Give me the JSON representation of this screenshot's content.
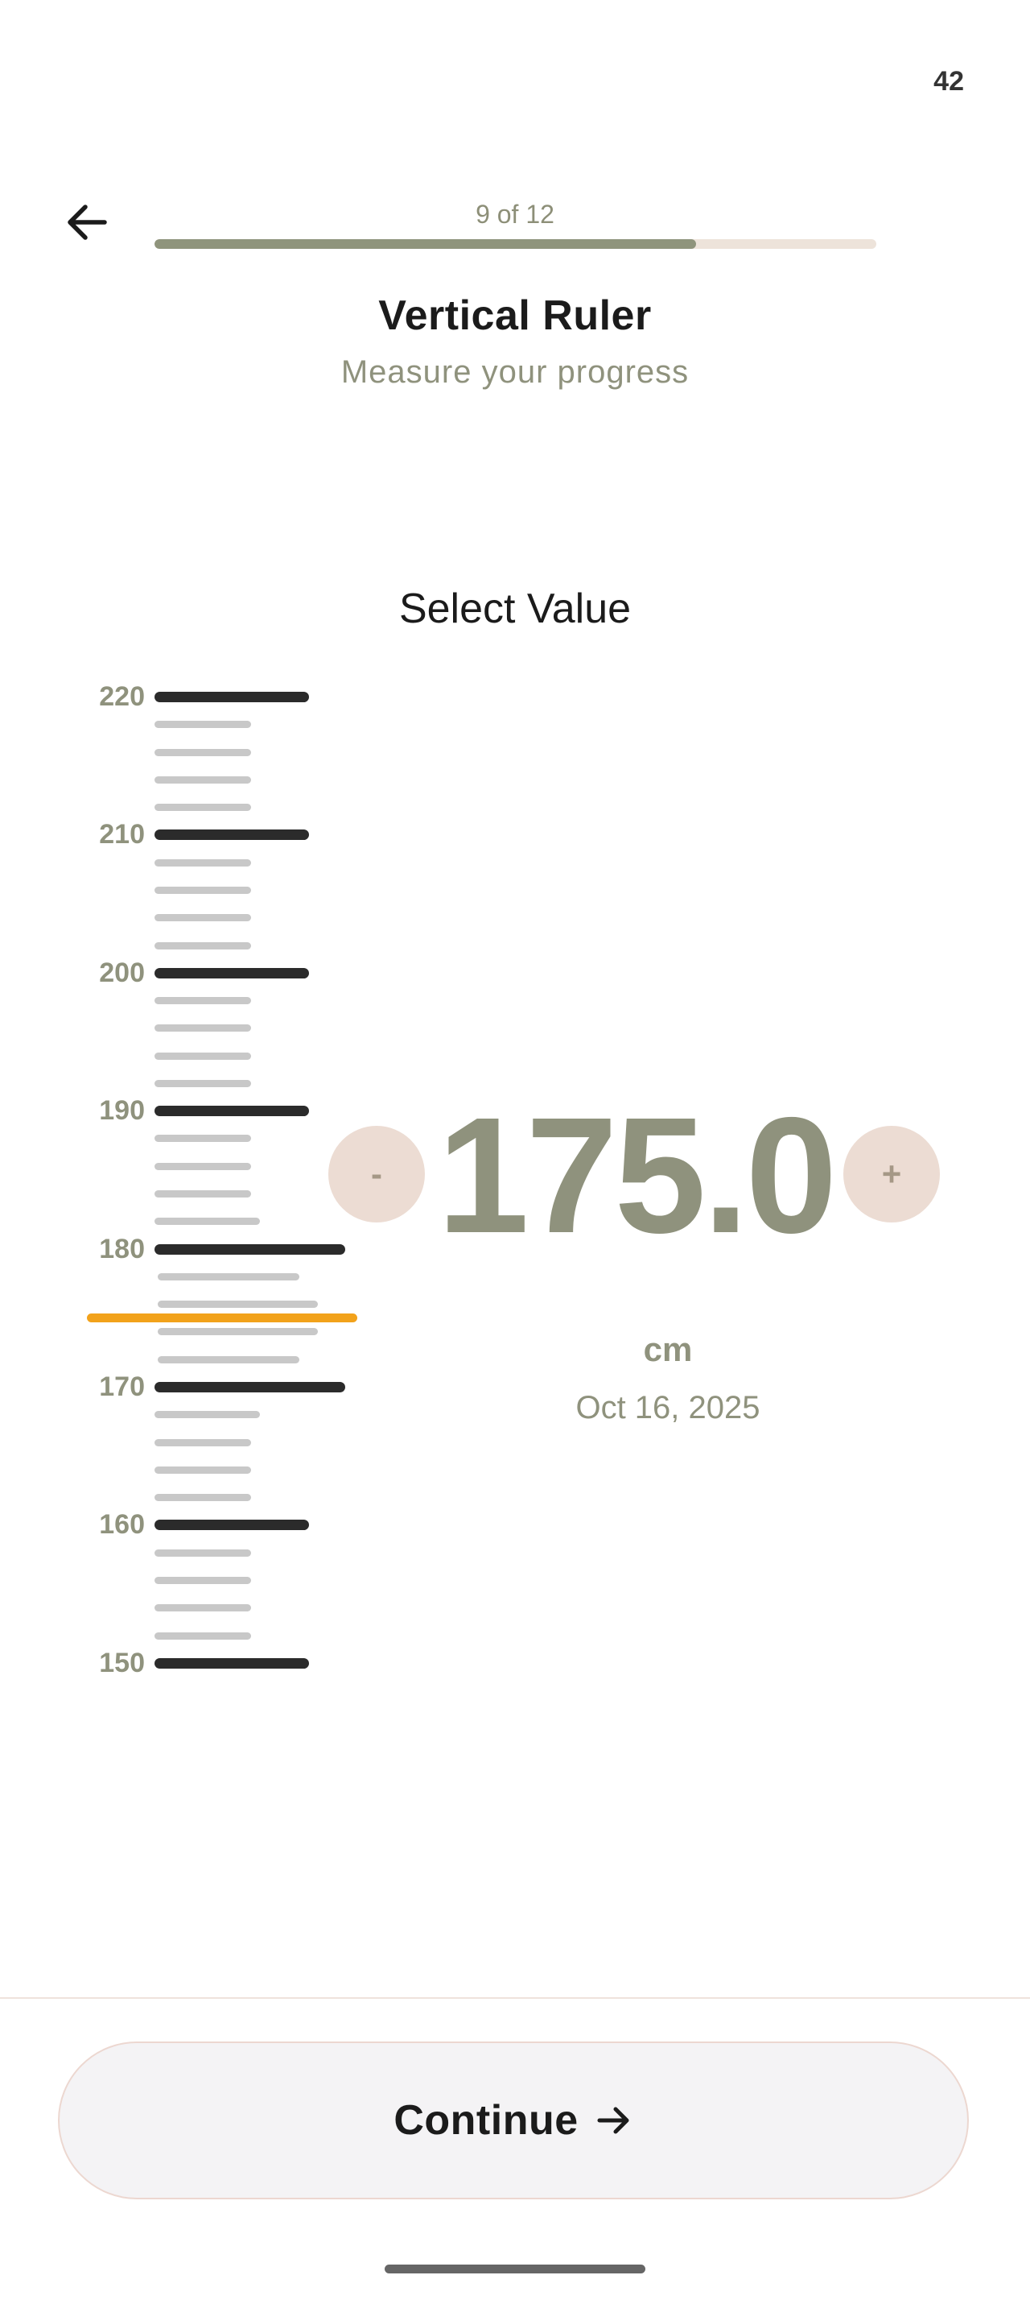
{
  "status_bar": {
    "right_text": "42"
  },
  "header": {
    "back_icon": "arrow-left-icon",
    "progress_text": "9 of 12",
    "progress_fraction": 0.75,
    "progress_colors": {
      "fill": "#8f947c",
      "track": "#ede3da"
    }
  },
  "title": "Vertical Ruler",
  "subtitle": "Measure your progress",
  "picker": {
    "label": "Select Value",
    "ruler": {
      "min": 150,
      "max": 220,
      "major_step": 10,
      "minor_step": 2,
      "major_labels": [
        "220",
        "210",
        "200",
        "190",
        "180",
        "170",
        "160",
        "150"
      ],
      "indicator_color": "#f2a21b"
    },
    "value": "175.0",
    "decrement_label": "-",
    "increment_label": "+",
    "unit": "cm",
    "date": "Oct 16, 2025"
  },
  "footer": {
    "continue_label": "Continue",
    "continue_icon": "arrow-right-icon"
  }
}
